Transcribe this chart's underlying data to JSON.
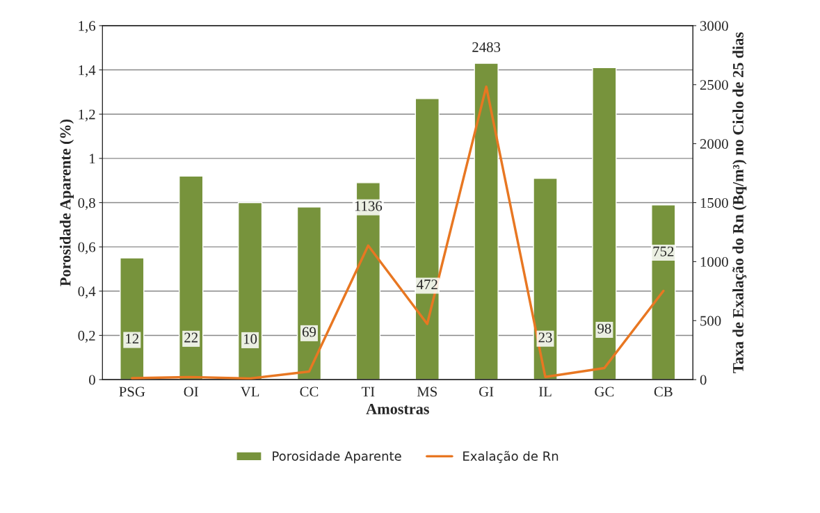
{
  "chart_data": {
    "type": "bar",
    "xlabel": "Amostras",
    "ylabel": "Porosidade Aparente (%)",
    "y2label": "Taxa de Exalação do Rn (Bq/m³) no Ciclo de 25 dias",
    "categories": [
      "PSG",
      "OI",
      "VL",
      "CC",
      "TI",
      "MS",
      "GI",
      "IL",
      "GC",
      "CB"
    ],
    "series": [
      {
        "name": "Porosidade Aparente",
        "color": "#77933c",
        "values": [
          0.55,
          0.92,
          0.8,
          0.78,
          0.89,
          1.27,
          1.43,
          0.91,
          1.41,
          0.79
        ]
      },
      {
        "name": "Exalação de Rn",
        "type": "line",
        "axis": "y2",
        "color": "#e87722",
        "values": [
          12,
          22,
          10,
          69,
          1136,
          472,
          2483,
          23,
          98,
          752
        ],
        "data_labels": true
      }
    ],
    "ylim": [
      0,
      1.6
    ],
    "yticks": [
      {
        "value": 0,
        "label": "0"
      },
      {
        "value": 0.2,
        "label": "0,2"
      },
      {
        "value": 0.4,
        "label": "0,4"
      },
      {
        "value": 0.6,
        "label": "0,6"
      },
      {
        "value": 0.8,
        "label": "0,8"
      },
      {
        "value": 1,
        "label": "1"
      },
      {
        "value": 1.2,
        "label": "1,2"
      },
      {
        "value": 1.4,
        "label": "1,4"
      },
      {
        "value": 1.6,
        "label": "1,6"
      }
    ],
    "y2lim": [
      0,
      3000
    ],
    "y2ticks": [
      0,
      500,
      1000,
      1500,
      2000,
      2500,
      3000
    ],
    "grid": "y",
    "legend": "bottom"
  }
}
